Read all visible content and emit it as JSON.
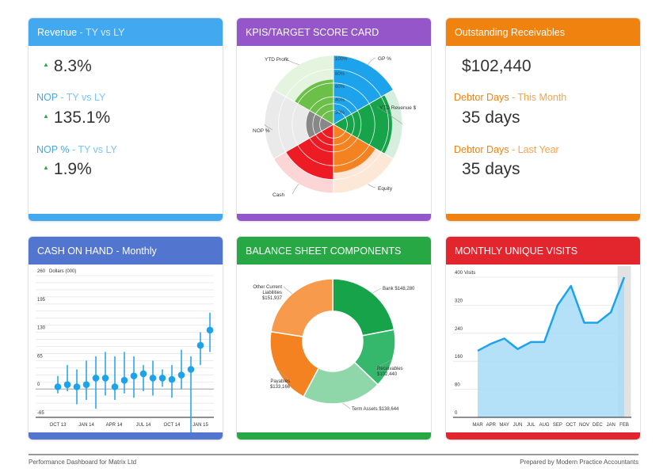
{
  "revenue_card": {
    "title": "Revenue",
    "title_sub": " - TY vs LY",
    "revenue_value": "8.3%",
    "nop_label": "NOP",
    "nop_sub": " - TY vs LY",
    "nop_value": "135.1%",
    "noppct_label": "NOP %",
    "noppct_sub": " - TY vs LY",
    "noppct_value": "1.9%",
    "arrow_icon": "up-triangle-icon"
  },
  "kpi_card": {
    "title": "KPIS/TARGET SCORE CARD",
    "chart_data": {
      "type": "polar-area",
      "categories": [
        "GP %",
        "YTD Revenue $",
        "Equity",
        "Cash",
        "NOP %",
        "YTD Profit"
      ],
      "actual_pct": [
        100,
        85,
        70,
        80,
        40,
        65
      ],
      "target_pct": [
        100,
        100,
        100,
        100,
        100,
        100
      ],
      "radial_ticks": [
        "100%",
        "80%",
        "60%",
        "40%",
        "30%"
      ],
      "colors": [
        "#1ca3ec",
        "#16a34a",
        "#f58220",
        "#ed1c24",
        "#888888",
        "#6cc04a"
      ]
    }
  },
  "receivables_card": {
    "title": "Outstanding Receivables",
    "value": "$102,440",
    "debtor_this_label": "Debtor Days",
    "debtor_this_sub": " - This Month",
    "debtor_this_value": "35 days",
    "debtor_last_label": "Debtor Days",
    "debtor_last_sub": " - Last Year",
    "debtor_last_value": "35 days"
  },
  "cash_card": {
    "title": "CASH ON HAND - Monthly",
    "chart_data": {
      "type": "scatter",
      "ylabel": "Dollars (000)",
      "y_ticks": [
        260,
        195,
        130,
        65,
        0,
        -65
      ],
      "y_tick_labels": [
        "260",
        "195",
        "130",
        "65",
        "0",
        "-65"
      ],
      "x_tick_labels": [
        "OCT 13",
        "JAN 14",
        "APR 14",
        "JUL 14",
        "OCT 14",
        "JAN 15"
      ],
      "ylim": [
        -65,
        260
      ],
      "points": [
        {
          "value": 5,
          "low": -10,
          "high": 30
        },
        {
          "value": 10,
          "low": -5,
          "high": 55
        },
        {
          "value": 5,
          "low": -35,
          "high": 45
        },
        {
          "value": 10,
          "low": -25,
          "high": 65
        },
        {
          "value": 25,
          "low": -45,
          "high": 75
        },
        {
          "value": 25,
          "low": -15,
          "high": 85
        },
        {
          "value": 5,
          "low": -25,
          "high": 75
        },
        {
          "value": 20,
          "low": -10,
          "high": 85
        },
        {
          "value": 30,
          "low": -20,
          "high": 75
        },
        {
          "value": 35,
          "low": -5,
          "high": 55
        },
        {
          "value": 25,
          "low": -15,
          "high": 65
        },
        {
          "value": 25,
          "low": 5,
          "high": 45
        },
        {
          "value": 22,
          "low": -20,
          "high": 55
        },
        {
          "value": 32,
          "low": 0,
          "high": 90
        },
        {
          "value": 45,
          "low": -115,
          "high": 75
        },
        {
          "value": 100,
          "low": 55,
          "high": 130
        },
        {
          "value": 135,
          "low": 85,
          "high": 175
        }
      ],
      "color": "#1ca3ec"
    }
  },
  "balance_card": {
    "title": "BALANCE SHEET COMPONENTS",
    "chart_data": {
      "type": "pie",
      "categories": [
        "Bank",
        "Receivables",
        "Term Assets",
        "Payables",
        "Other Current Liabilities"
      ],
      "values": [
        148280,
        102440,
        138644,
        133166,
        151937
      ],
      "labels": [
        "Bank $148,280",
        "Receivables $102,440",
        "Term Assets $138,644",
        "Payables $133,166",
        "Other Current Liabilities $151,937"
      ],
      "label_lines": [
        [
          "Bank $148,280"
        ],
        [
          "Receivables",
          "$102,440"
        ],
        [
          "Term Assets $138,644"
        ],
        [
          "Payables",
          "$133,166"
        ],
        [
          "Other Current",
          "Liabilities",
          "$151,937"
        ]
      ],
      "colors": [
        "#16a34a",
        "#35b76c",
        "#8fd6a8",
        "#f58220",
        "#f79a4c"
      ]
    }
  },
  "visits_card": {
    "title": "MONTHLY UNIQUE VISITS",
    "chart_data": {
      "type": "area",
      "ylabel": "Visits",
      "categories": [
        "MAR",
        "APR",
        "MAY",
        "JUN",
        "JUL",
        "AUG",
        "SEP",
        "OCT",
        "NOV",
        "DEC",
        "JAN",
        "FEB"
      ],
      "values": [
        190,
        210,
        225,
        195,
        215,
        215,
        320,
        375,
        270,
        270,
        300,
        400
      ],
      "y_ticks": [
        400,
        320,
        240,
        160,
        80,
        0
      ],
      "y_tick_labels": [
        "400",
        "320",
        "240",
        "160",
        "80",
        "0"
      ],
      "ylim": [
        0,
        400
      ],
      "highlight_category": "FEB",
      "color": "#1ca3ec",
      "fill": "#a8dcf7"
    }
  },
  "footer": {
    "left": "Performance Dashboard for Matrix Ltd",
    "right": "Prepared by Modern Practice Accountants"
  }
}
